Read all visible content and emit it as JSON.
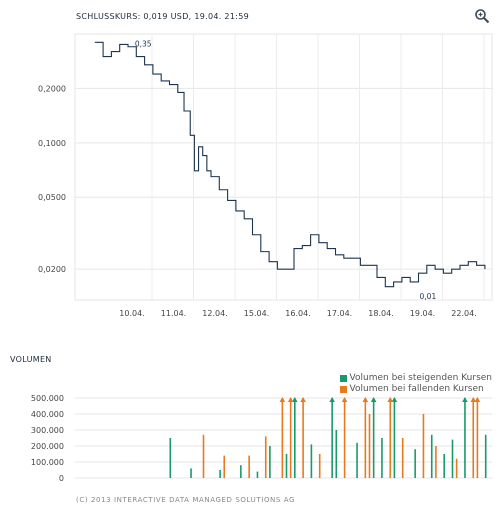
{
  "header": {
    "title": "SCHLUSSKURS: 0,019 USD, 19.04. 21:59"
  },
  "icons": {
    "zoom": "zoom-magnifier-icon"
  },
  "volume_title": "VOLUMEN",
  "legend": {
    "rising": {
      "label": "Volumen bei steigenden Kursen",
      "color": "#1a9a6a"
    },
    "falling": {
      "label": "Volumen bei fallenden Kursen",
      "color": "#e87a1e"
    }
  },
  "footer": "(C) 2013 INTERACTIVE DATA MANAGED SOLUTIONS AG",
  "chart_data": [
    {
      "type": "line",
      "title": "SCHLUSSKURS: 0,019 USD, 19.04. 21:59",
      "yscale": "log",
      "ylim": [
        0.0135,
        0.4
      ],
      "yticks": [
        0.2,
        0.1,
        0.05,
        0.02
      ],
      "ytick_labels": [
        "0,2000",
        "0,1000",
        "0,0500",
        "0,0200"
      ],
      "x_categories": [
        "10.04.",
        "11.04.",
        "12.04.",
        "15.04.",
        "16.04.",
        "17.04.",
        "18.04.",
        "19.04.",
        "22.04."
      ],
      "annotations": [
        {
          "label": "0,35",
          "x": 0.02,
          "y": 0.35
        },
        {
          "label": "0,01",
          "x": 6.88,
          "y": 0.0155
        }
      ],
      "grid": true,
      "color": "#1c3550",
      "x": [
        -0.8,
        -0.6,
        -0.4,
        -0.2,
        0.0,
        0.2,
        0.4,
        0.6,
        0.8,
        1.0,
        1.2,
        1.35,
        1.5,
        1.6,
        1.7,
        1.8,
        1.9,
        2.0,
        2.2,
        2.4,
        2.6,
        2.8,
        3.0,
        3.2,
        3.4,
        3.6,
        3.8,
        4.0,
        4.2,
        4.4,
        4.6,
        4.8,
        5.0,
        5.2,
        5.4,
        5.6,
        5.8,
        6.0,
        6.2,
        6.4,
        6.6,
        6.8,
        7.0,
        7.2,
        7.4,
        7.6,
        7.8,
        8.0,
        8.2,
        8.4,
        8.6
      ],
      "y": [
        0.36,
        0.3,
        0.32,
        0.35,
        0.34,
        0.3,
        0.27,
        0.24,
        0.22,
        0.21,
        0.19,
        0.15,
        0.11,
        0.07,
        0.095,
        0.085,
        0.07,
        0.065,
        0.055,
        0.048,
        0.042,
        0.038,
        0.031,
        0.025,
        0.022,
        0.02,
        0.02,
        0.026,
        0.027,
        0.031,
        0.028,
        0.026,
        0.024,
        0.023,
        0.023,
        0.021,
        0.021,
        0.018,
        0.016,
        0.017,
        0.018,
        0.017,
        0.019,
        0.021,
        0.02,
        0.019,
        0.02,
        0.021,
        0.022,
        0.021,
        0.02
      ]
    },
    {
      "type": "bar",
      "title": "VOLUMEN",
      "ylim": [
        0,
        500000
      ],
      "yticks": [
        0,
        100000,
        200000,
        300000,
        400000,
        500000
      ],
      "ytick_labels": [
        "0",
        "100.000",
        "200.000",
        "300.000",
        "400.000",
        "500.000"
      ],
      "series": [
        {
          "name": "Volumen bei steigenden Kursen",
          "color": "#1a9a6a",
          "x": [
            1.0,
            1.5,
            2.2,
            2.7,
            3.1,
            3.4,
            3.8,
            4.0,
            4.4,
            4.9,
            5.0,
            5.5,
            5.9,
            6.1,
            6.4,
            6.9,
            7.3,
            7.6,
            7.8,
            8.1,
            8.6
          ],
          "values": [
            250000,
            60000,
            50000,
            80000,
            40000,
            200000,
            150000,
            520000,
            210000,
            520000,
            300000,
            220000,
            520000,
            250000,
            520000,
            180000,
            270000,
            150000,
            240000,
            520000,
            270000
          ]
        },
        {
          "name": "Volumen bei fallenden Kursen",
          "color": "#e87a1e",
          "x": [
            1.8,
            2.3,
            2.9,
            3.3,
            3.7,
            3.9,
            4.2,
            4.6,
            5.2,
            5.7,
            5.8,
            6.3,
            6.6,
            7.1,
            7.4,
            7.9,
            8.3,
            8.4
          ],
          "values": [
            270000,
            140000,
            140000,
            260000,
            520000,
            520000,
            520000,
            150000,
            520000,
            520000,
            400000,
            520000,
            250000,
            400000,
            200000,
            120000,
            520000,
            520000
          ]
        }
      ]
    }
  ]
}
